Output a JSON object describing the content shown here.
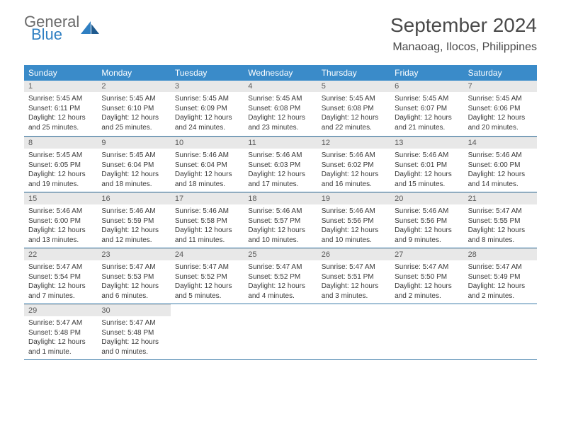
{
  "brand": {
    "part1": "General",
    "part2": "Blue"
  },
  "title": "September 2024",
  "location": "Manaoag, Ilocos, Philippines",
  "colors": {
    "header_bg": "#3a8bc9",
    "header_text": "#ffffff",
    "daynum_bg": "#e8e8e8",
    "week_divider": "#3a7aa8",
    "brand_gray": "#6b6b6b",
    "brand_blue": "#2f7fc2"
  },
  "day_names": [
    "Sunday",
    "Monday",
    "Tuesday",
    "Wednesday",
    "Thursday",
    "Friday",
    "Saturday"
  ],
  "weeks": [
    [
      {
        "n": "1",
        "sr": "Sunrise: 5:45 AM",
        "ss": "Sunset: 6:11 PM",
        "d1": "Daylight: 12 hours",
        "d2": "and 25 minutes."
      },
      {
        "n": "2",
        "sr": "Sunrise: 5:45 AM",
        "ss": "Sunset: 6:10 PM",
        "d1": "Daylight: 12 hours",
        "d2": "and 25 minutes."
      },
      {
        "n": "3",
        "sr": "Sunrise: 5:45 AM",
        "ss": "Sunset: 6:09 PM",
        "d1": "Daylight: 12 hours",
        "d2": "and 24 minutes."
      },
      {
        "n": "4",
        "sr": "Sunrise: 5:45 AM",
        "ss": "Sunset: 6:08 PM",
        "d1": "Daylight: 12 hours",
        "d2": "and 23 minutes."
      },
      {
        "n": "5",
        "sr": "Sunrise: 5:45 AM",
        "ss": "Sunset: 6:08 PM",
        "d1": "Daylight: 12 hours",
        "d2": "and 22 minutes."
      },
      {
        "n": "6",
        "sr": "Sunrise: 5:45 AM",
        "ss": "Sunset: 6:07 PM",
        "d1": "Daylight: 12 hours",
        "d2": "and 21 minutes."
      },
      {
        "n": "7",
        "sr": "Sunrise: 5:45 AM",
        "ss": "Sunset: 6:06 PM",
        "d1": "Daylight: 12 hours",
        "d2": "and 20 minutes."
      }
    ],
    [
      {
        "n": "8",
        "sr": "Sunrise: 5:45 AM",
        "ss": "Sunset: 6:05 PM",
        "d1": "Daylight: 12 hours",
        "d2": "and 19 minutes."
      },
      {
        "n": "9",
        "sr": "Sunrise: 5:45 AM",
        "ss": "Sunset: 6:04 PM",
        "d1": "Daylight: 12 hours",
        "d2": "and 18 minutes."
      },
      {
        "n": "10",
        "sr": "Sunrise: 5:46 AM",
        "ss": "Sunset: 6:04 PM",
        "d1": "Daylight: 12 hours",
        "d2": "and 18 minutes."
      },
      {
        "n": "11",
        "sr": "Sunrise: 5:46 AM",
        "ss": "Sunset: 6:03 PM",
        "d1": "Daylight: 12 hours",
        "d2": "and 17 minutes."
      },
      {
        "n": "12",
        "sr": "Sunrise: 5:46 AM",
        "ss": "Sunset: 6:02 PM",
        "d1": "Daylight: 12 hours",
        "d2": "and 16 minutes."
      },
      {
        "n": "13",
        "sr": "Sunrise: 5:46 AM",
        "ss": "Sunset: 6:01 PM",
        "d1": "Daylight: 12 hours",
        "d2": "and 15 minutes."
      },
      {
        "n": "14",
        "sr": "Sunrise: 5:46 AM",
        "ss": "Sunset: 6:00 PM",
        "d1": "Daylight: 12 hours",
        "d2": "and 14 minutes."
      }
    ],
    [
      {
        "n": "15",
        "sr": "Sunrise: 5:46 AM",
        "ss": "Sunset: 6:00 PM",
        "d1": "Daylight: 12 hours",
        "d2": "and 13 minutes."
      },
      {
        "n": "16",
        "sr": "Sunrise: 5:46 AM",
        "ss": "Sunset: 5:59 PM",
        "d1": "Daylight: 12 hours",
        "d2": "and 12 minutes."
      },
      {
        "n": "17",
        "sr": "Sunrise: 5:46 AM",
        "ss": "Sunset: 5:58 PM",
        "d1": "Daylight: 12 hours",
        "d2": "and 11 minutes."
      },
      {
        "n": "18",
        "sr": "Sunrise: 5:46 AM",
        "ss": "Sunset: 5:57 PM",
        "d1": "Daylight: 12 hours",
        "d2": "and 10 minutes."
      },
      {
        "n": "19",
        "sr": "Sunrise: 5:46 AM",
        "ss": "Sunset: 5:56 PM",
        "d1": "Daylight: 12 hours",
        "d2": "and 10 minutes."
      },
      {
        "n": "20",
        "sr": "Sunrise: 5:46 AM",
        "ss": "Sunset: 5:56 PM",
        "d1": "Daylight: 12 hours",
        "d2": "and 9 minutes."
      },
      {
        "n": "21",
        "sr": "Sunrise: 5:47 AM",
        "ss": "Sunset: 5:55 PM",
        "d1": "Daylight: 12 hours",
        "d2": "and 8 minutes."
      }
    ],
    [
      {
        "n": "22",
        "sr": "Sunrise: 5:47 AM",
        "ss": "Sunset: 5:54 PM",
        "d1": "Daylight: 12 hours",
        "d2": "and 7 minutes."
      },
      {
        "n": "23",
        "sr": "Sunrise: 5:47 AM",
        "ss": "Sunset: 5:53 PM",
        "d1": "Daylight: 12 hours",
        "d2": "and 6 minutes."
      },
      {
        "n": "24",
        "sr": "Sunrise: 5:47 AM",
        "ss": "Sunset: 5:52 PM",
        "d1": "Daylight: 12 hours",
        "d2": "and 5 minutes."
      },
      {
        "n": "25",
        "sr": "Sunrise: 5:47 AM",
        "ss": "Sunset: 5:52 PM",
        "d1": "Daylight: 12 hours",
        "d2": "and 4 minutes."
      },
      {
        "n": "26",
        "sr": "Sunrise: 5:47 AM",
        "ss": "Sunset: 5:51 PM",
        "d1": "Daylight: 12 hours",
        "d2": "and 3 minutes."
      },
      {
        "n": "27",
        "sr": "Sunrise: 5:47 AM",
        "ss": "Sunset: 5:50 PM",
        "d1": "Daylight: 12 hours",
        "d2": "and 2 minutes."
      },
      {
        "n": "28",
        "sr": "Sunrise: 5:47 AM",
        "ss": "Sunset: 5:49 PM",
        "d1": "Daylight: 12 hours",
        "d2": "and 2 minutes."
      }
    ],
    [
      {
        "n": "29",
        "sr": "Sunrise: 5:47 AM",
        "ss": "Sunset: 5:48 PM",
        "d1": "Daylight: 12 hours",
        "d2": "and 1 minute."
      },
      {
        "n": "30",
        "sr": "Sunrise: 5:47 AM",
        "ss": "Sunset: 5:48 PM",
        "d1": "Daylight: 12 hours",
        "d2": "and 0 minutes."
      },
      {
        "empty": true
      },
      {
        "empty": true
      },
      {
        "empty": true
      },
      {
        "empty": true
      },
      {
        "empty": true
      }
    ]
  ]
}
